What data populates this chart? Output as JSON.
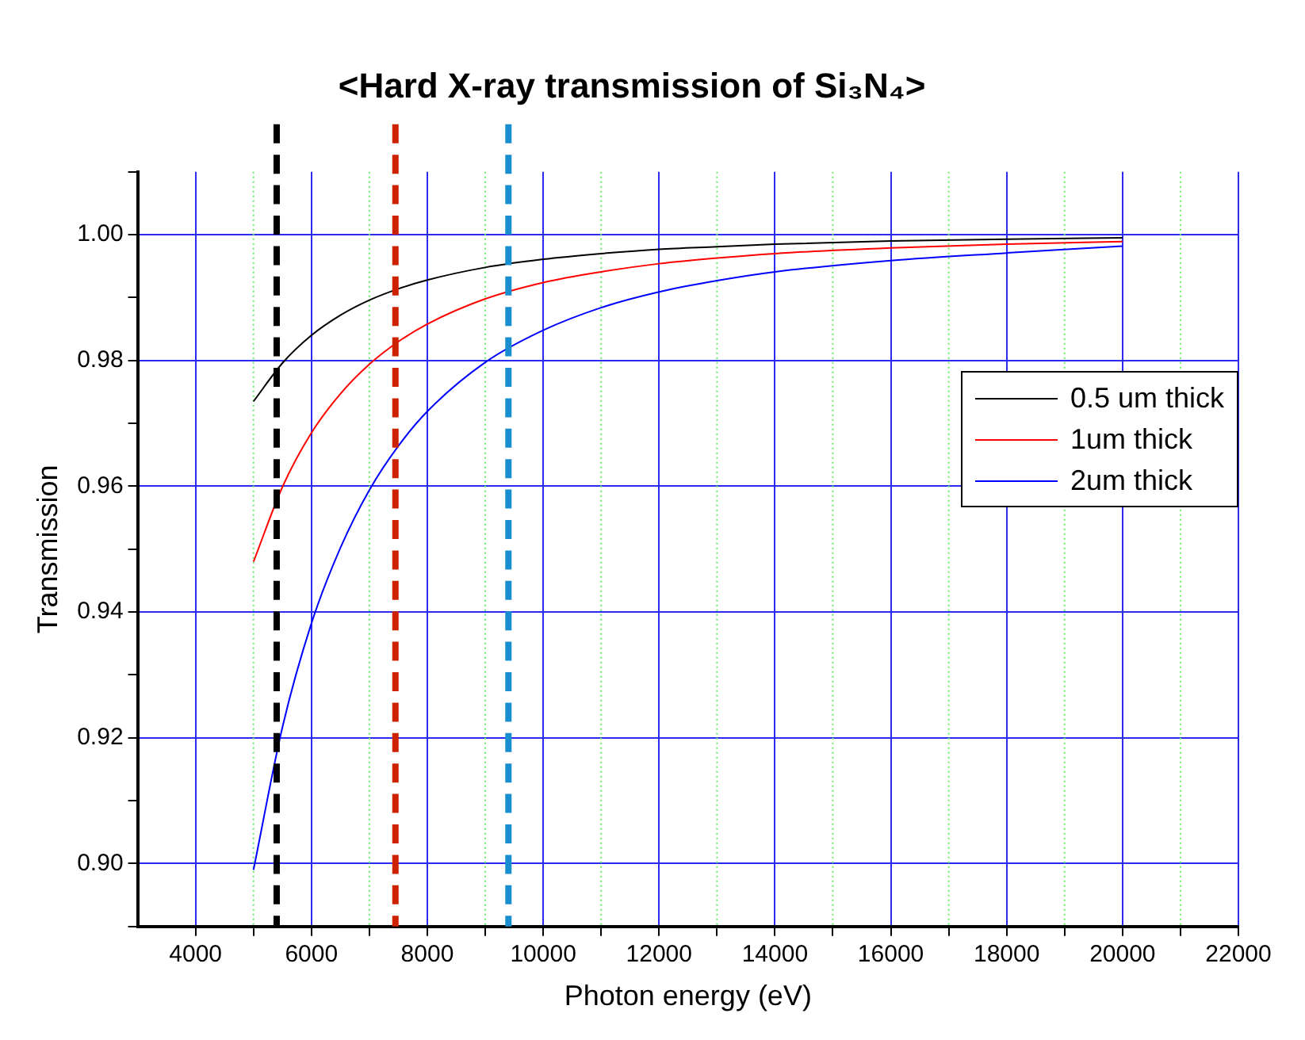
{
  "chart_data": {
    "type": "line",
    "title": "<Hard X-ray transmission of Si₃N₄>",
    "xlabel": "Photon energy (eV)",
    "ylabel": "Transmission",
    "x": [
      5000,
      5500,
      6000,
      6500,
      7000,
      7500,
      8000,
      9000,
      10000,
      11000,
      12000,
      13000,
      14000,
      16000,
      18000,
      20000
    ],
    "series": [
      {
        "name": "0.5 um thick",
        "color": "#000000",
        "values": [
          0.9735,
          0.9796,
          0.984,
          0.9872,
          0.9896,
          0.9914,
          0.9928,
          0.9948,
          0.9961,
          0.997,
          0.9977,
          0.9981,
          0.9985,
          0.999,
          0.9993,
          0.9995
        ]
      },
      {
        "name": "1um thick",
        "color": "#ff0000",
        "values": [
          0.948,
          0.9599,
          0.9685,
          0.9747,
          0.9794,
          0.983,
          0.9858,
          0.9898,
          0.9924,
          0.9941,
          0.9954,
          0.9963,
          0.997,
          0.9979,
          0.9985,
          0.9989
        ]
      },
      {
        "name": "2um thick",
        "color": "#0000ff",
        "values": [
          0.899,
          0.9217,
          0.9382,
          0.9502,
          0.9594,
          0.9664,
          0.9719,
          0.9797,
          0.9848,
          0.9884,
          0.9909,
          0.9927,
          0.9941,
          0.9959,
          0.9971,
          0.9982
        ]
      }
    ],
    "xlim": [
      3000,
      22000
    ],
    "xticks": [
      4000,
      {
        "value": 5000,
        "label": null
      },
      6000,
      {
        "value": 7000,
        "label": null
      },
      8000,
      {
        "value": 9000,
        "label": null
      },
      10000,
      {
        "value": 11000,
        "label": null
      },
      12000,
      {
        "value": 13000,
        "label": null
      },
      14000,
      {
        "value": 15000,
        "label": null
      },
      16000,
      {
        "value": 17000,
        "label": null
      },
      18000,
      {
        "value": 19000,
        "label": null
      },
      20000,
      {
        "value": 21000,
        "label": null
      },
      22000
    ],
    "ylim": [
      0.89,
      1.01
    ],
    "yticks": [
      {
        "value": 0.89,
        "label": null
      },
      {
        "value": 0.9,
        "label": "0.90"
      },
      {
        "value": 0.91,
        "label": null
      },
      {
        "value": 0.92,
        "label": "0.92"
      },
      {
        "value": 0.93,
        "label": null
      },
      {
        "value": 0.94,
        "label": "0.94"
      },
      {
        "value": 0.95,
        "label": null
      },
      {
        "value": 0.96,
        "label": "0.96"
      },
      {
        "value": 0.97,
        "label": null
      },
      {
        "value": 0.98,
        "label": "0.98"
      },
      {
        "value": 0.99,
        "label": null
      },
      {
        "value": 1.0,
        "label": "1.00"
      },
      {
        "value": 1.01,
        "label": null
      }
    ],
    "ref_lines": [
      {
        "axis": "x",
        "value": 5400,
        "color": "#000000",
        "line_style": "dashed"
      },
      {
        "axis": "x",
        "value": 7450,
        "color": "#cc2200",
        "line_style": "dashed"
      },
      {
        "axis": "x",
        "value": 9400,
        "color": "#1a8fd0",
        "line_style": "dashed"
      }
    ],
    "grid": true,
    "legend": "top right",
    "marker": "none",
    "line_style": "solid"
  }
}
